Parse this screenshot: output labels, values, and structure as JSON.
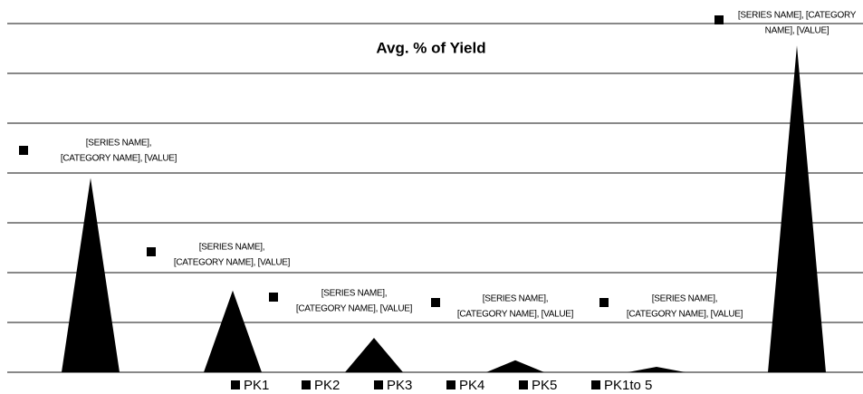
{
  "chart_data": {
    "type": "triangle-bar",
    "title": "Avg. % of Yield",
    "categories": [
      null
    ],
    "series": [
      {
        "name": "PK1",
        "color": "#000000",
        "values": [
          3.9
        ]
      },
      {
        "name": "PK2",
        "color": "#000000",
        "values": [
          1.64
        ]
      },
      {
        "name": "PK3",
        "color": "#000000",
        "values": [
          0.69
        ]
      },
      {
        "name": "PK4",
        "color": "#000000",
        "values": [
          0.24
        ]
      },
      {
        "name": "PK5",
        "color": "#000000",
        "values": [
          0.11
        ]
      },
      {
        "name": "PK1to 5",
        "color": "#000000",
        "values": [
          6.56
        ]
      }
    ],
    "annotations": [
      [
        "[SERIES NAME],",
        "[CATEGORY NAME], [VALUE]"
      ],
      [
        "[SERIES NAME],",
        "[CATEGORY NAME], [VALUE]"
      ],
      [
        "[SERIES NAME],",
        "[CATEGORY NAME], [VALUE]"
      ],
      [
        "[SERIES NAME],",
        "[CATEGORY NAME], [VALUE]"
      ],
      [
        "[SERIES NAME],",
        "[CATEGORY NAME], [VALUE]"
      ],
      [
        "[SERIES NAME], [CATEGORY",
        "NAME], [VALUE]"
      ]
    ],
    "ylim": [
      0,
      7
    ],
    "yticks": [
      0,
      1,
      2,
      3,
      4,
      5,
      6,
      7
    ],
    "grid": true,
    "legend": "bottom"
  }
}
